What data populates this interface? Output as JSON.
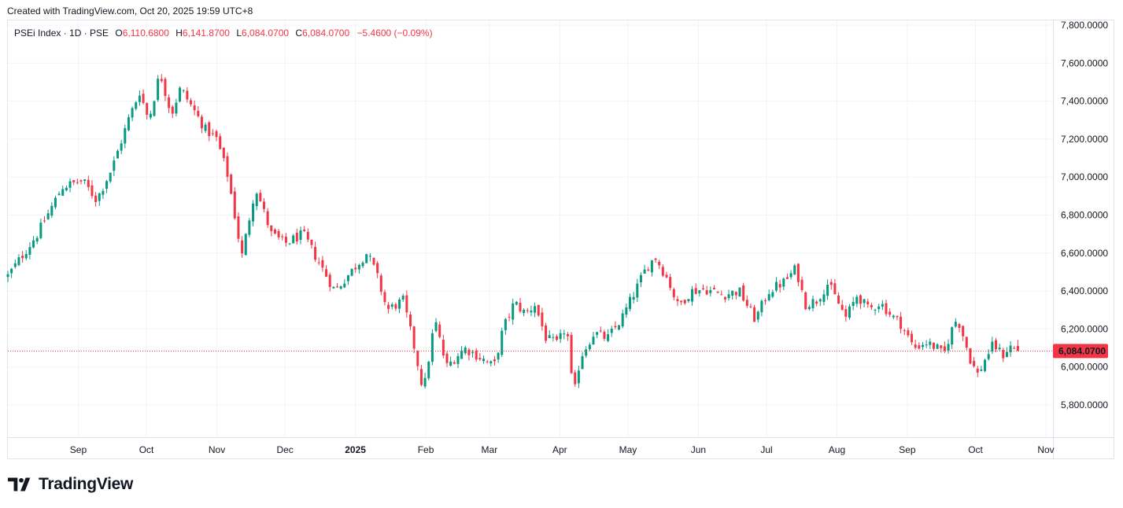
{
  "header": {
    "created_text": "Created with TradingView.com, Oct 20, 2025 19:59 UTC+8"
  },
  "legend": {
    "symbol": "PSEi Index · 1D · PSE",
    "open_label": "O",
    "open": "6,110.6800",
    "high_label": "H",
    "high": "6,141.8700",
    "low_label": "L",
    "low": "6,084.0700",
    "close_label": "C",
    "close": "6,084.0700",
    "change": "−5.4600 (−0.09%)"
  },
  "brand": {
    "name": "TradingView",
    "logo_icon": "tradingview-logo-icon"
  },
  "colors": {
    "up": "#089981",
    "down": "#f23645",
    "grid": "#f0f3fa",
    "text": "#131722",
    "border": "#e0e3eb"
  },
  "chart_data": {
    "type": "candlestick",
    "interval": "1D",
    "current_price": 6084.07,
    "current_price_label": "6,084.0700",
    "y_axis": {
      "range": [
        5700,
        7820
      ],
      "ticks": [
        5800,
        6000,
        6200,
        6400,
        6600,
        6800,
        7000,
        7200,
        7400,
        7600,
        7800
      ],
      "tick_labels": [
        "5,800.0000",
        "6,000.0000",
        "6,200.0000",
        "6,400.0000",
        "6,600.0000",
        "6,800.0000",
        "7,000.0000",
        "7,200.0000",
        "7,400.0000",
        "7,600.0000",
        "7,800.0000"
      ]
    },
    "x_axis": {
      "labels": [
        {
          "text": "Sep",
          "date": "2024-09-01",
          "bold": false
        },
        {
          "text": "Oct",
          "date": "2024-10-01",
          "bold": false
        },
        {
          "text": "Nov",
          "date": "2024-11-01",
          "bold": false
        },
        {
          "text": "Dec",
          "date": "2024-12-01",
          "bold": false
        },
        {
          "text": "2025",
          "date": "2025-01-01",
          "bold": true
        },
        {
          "text": "Feb",
          "date": "2025-02-01",
          "bold": false
        },
        {
          "text": "Mar",
          "date": "2025-03-01",
          "bold": false
        },
        {
          "text": "Apr",
          "date": "2025-04-01",
          "bold": false
        },
        {
          "text": "May",
          "date": "2025-05-01",
          "bold": false
        },
        {
          "text": "Jun",
          "date": "2025-06-01",
          "bold": false
        },
        {
          "text": "Jul",
          "date": "2025-07-01",
          "bold": false
        },
        {
          "text": "Aug",
          "date": "2025-08-01",
          "bold": false
        },
        {
          "text": "Sep",
          "date": "2025-09-01",
          "bold": false
        },
        {
          "text": "Oct",
          "date": "2025-10-01",
          "bold": false
        },
        {
          "text": "Nov",
          "date": "2025-11-01",
          "bold": false
        }
      ]
    },
    "series": [
      {
        "closes": [
          {
            "date": "2024-08-01",
            "close": 6480
          },
          {
            "date": "2024-08-14",
            "close": 6700
          },
          {
            "date": "2024-08-25",
            "close": 6950
          },
          {
            "date": "2024-09-03",
            "close": 6980
          },
          {
            "date": "2024-09-09",
            "close": 6880
          },
          {
            "date": "2024-09-16",
            "close": 7050
          },
          {
            "date": "2024-09-23",
            "close": 7300
          },
          {
            "date": "2024-09-28",
            "close": 7450
          },
          {
            "date": "2024-10-02",
            "close": 7300
          },
          {
            "date": "2024-10-07",
            "close": 7550
          },
          {
            "date": "2024-10-12",
            "close": 7330
          },
          {
            "date": "2024-10-16",
            "close": 7470
          },
          {
            "date": "2024-10-22",
            "close": 7350
          },
          {
            "date": "2024-10-27",
            "close": 7250
          },
          {
            "date": "2024-11-01",
            "close": 7200
          },
          {
            "date": "2024-11-06",
            "close": 7000
          },
          {
            "date": "2024-11-12",
            "close": 6580
          },
          {
            "date": "2024-11-18",
            "close": 6950
          },
          {
            "date": "2024-11-25",
            "close": 6700
          },
          {
            "date": "2024-12-01",
            "close": 6650
          },
          {
            "date": "2024-12-09",
            "close": 6700
          },
          {
            "date": "2024-12-16",
            "close": 6550
          },
          {
            "date": "2024-12-23",
            "close": 6400
          },
          {
            "date": "2025-01-01",
            "close": 6530
          },
          {
            "date": "2025-01-06",
            "close": 6600
          },
          {
            "date": "2025-01-10",
            "close": 6500
          },
          {
            "date": "2025-01-15",
            "close": 6300
          },
          {
            "date": "2025-01-22",
            "close": 6350
          },
          {
            "date": "2025-01-27",
            "close": 6100
          },
          {
            "date": "2025-01-31",
            "close": 5870
          },
          {
            "date": "2025-02-05",
            "close": 6250
          },
          {
            "date": "2025-02-10",
            "close": 6000
          },
          {
            "date": "2025-02-18",
            "close": 6100
          },
          {
            "date": "2025-02-25",
            "close": 6050
          },
          {
            "date": "2025-03-03",
            "close": 6000
          },
          {
            "date": "2025-03-07",
            "close": 6200
          },
          {
            "date": "2025-03-12",
            "close": 6340
          },
          {
            "date": "2025-03-17",
            "close": 6280
          },
          {
            "date": "2025-03-21",
            "close": 6330
          },
          {
            "date": "2025-03-26",
            "close": 6150
          },
          {
            "date": "2025-03-31",
            "close": 6120
          },
          {
            "date": "2025-04-04",
            "close": 6220
          },
          {
            "date": "2025-04-07",
            "close": 5830
          },
          {
            "date": "2025-04-10",
            "close": 6050
          },
          {
            "date": "2025-04-16",
            "close": 6180
          },
          {
            "date": "2025-04-22",
            "close": 6150
          },
          {
            "date": "2025-04-28",
            "close": 6250
          },
          {
            "date": "2025-05-05",
            "close": 6420
          },
          {
            "date": "2025-05-09",
            "close": 6520
          },
          {
            "date": "2025-05-13",
            "close": 6580
          },
          {
            "date": "2025-05-19",
            "close": 6450
          },
          {
            "date": "2025-05-23",
            "close": 6320
          },
          {
            "date": "2025-05-29",
            "close": 6400
          },
          {
            "date": "2025-06-04",
            "close": 6410
          },
          {
            "date": "2025-06-12",
            "close": 6380
          },
          {
            "date": "2025-06-19",
            "close": 6400
          },
          {
            "date": "2025-06-26",
            "close": 6250
          },
          {
            "date": "2025-07-02",
            "close": 6400
          },
          {
            "date": "2025-07-09",
            "close": 6450
          },
          {
            "date": "2025-07-14",
            "close": 6520
          },
          {
            "date": "2025-07-18",
            "close": 6330
          },
          {
            "date": "2025-07-23",
            "close": 6350
          },
          {
            "date": "2025-07-28",
            "close": 6440
          },
          {
            "date": "2025-08-01",
            "close": 6350
          },
          {
            "date": "2025-08-05",
            "close": 6260
          },
          {
            "date": "2025-08-10",
            "close": 6380
          },
          {
            "date": "2025-08-15",
            "close": 6300
          },
          {
            "date": "2025-08-20",
            "close": 6340
          },
          {
            "date": "2025-08-25",
            "close": 6270
          },
          {
            "date": "2025-08-29",
            "close": 6230
          },
          {
            "date": "2025-09-04",
            "close": 6100
          },
          {
            "date": "2025-09-09",
            "close": 6130
          },
          {
            "date": "2025-09-14",
            "close": 6100
          },
          {
            "date": "2025-09-17",
            "close": 6060
          },
          {
            "date": "2025-09-20",
            "close": 6180
          },
          {
            "date": "2025-09-23",
            "close": 6260
          },
          {
            "date": "2025-09-26",
            "close": 6150
          },
          {
            "date": "2025-09-29",
            "close": 6030
          },
          {
            "date": "2025-10-02",
            "close": 5960
          },
          {
            "date": "2025-10-06",
            "close": 6060
          },
          {
            "date": "2025-10-09",
            "close": 6120
          },
          {
            "date": "2025-10-13",
            "close": 6060
          },
          {
            "date": "2025-10-16",
            "close": 6110
          },
          {
            "date": "2025-10-20",
            "close": 6084.07
          }
        ]
      }
    ]
  }
}
